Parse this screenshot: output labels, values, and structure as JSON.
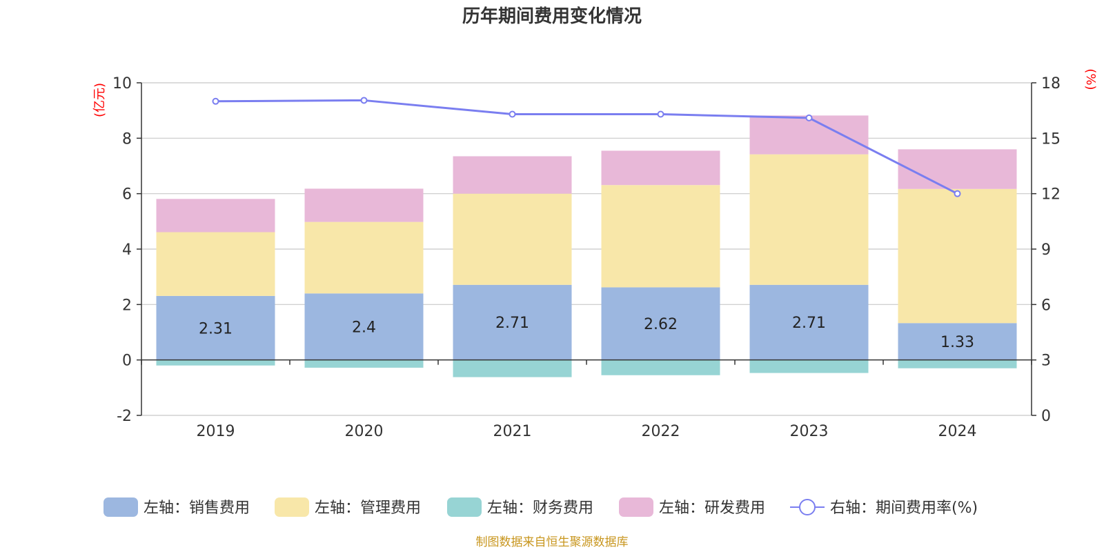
{
  "chart_data": {
    "type": "bar",
    "title": "历年期间费用变化情况",
    "categories": [
      "2019",
      "2020",
      "2021",
      "2022",
      "2023",
      "2024"
    ],
    "left_axis": {
      "unit": "(亿元)",
      "ylim": [
        -2,
        10
      ],
      "ticks": [
        -2,
        0,
        2,
        4,
        6,
        8,
        10
      ]
    },
    "right_axis": {
      "unit": "(%)",
      "ylim": [
        0,
        18
      ],
      "ticks": [
        0,
        3,
        6,
        9,
        12,
        15,
        18
      ]
    },
    "series": [
      {
        "name": "左轴：销售费用",
        "axis": "left",
        "type": "stacked-bar",
        "color": "#9cb7e0",
        "values": [
          2.31,
          2.4,
          2.71,
          2.62,
          2.71,
          1.33
        ],
        "labels": [
          "2.31",
          "2.4",
          "2.71",
          "2.62",
          "2.71",
          "1.33"
        ]
      },
      {
        "name": "左轴：管理费用",
        "axis": "left",
        "type": "stacked-bar",
        "color": "#f8e7a9",
        "values": [
          2.3,
          2.58,
          3.29,
          3.69,
          4.71,
          4.84
        ]
      },
      {
        "name": "左轴：财务费用",
        "axis": "left",
        "type": "stacked-bar",
        "color": "#97d4d4",
        "values": [
          -0.2,
          -0.28,
          -0.62,
          -0.55,
          -0.47,
          -0.3
        ]
      },
      {
        "name": "左轴：研发费用",
        "axis": "left",
        "type": "stacked-bar",
        "color": "#e8b8d8",
        "values": [
          1.2,
          1.2,
          1.35,
          1.24,
          1.4,
          1.43
        ]
      },
      {
        "name": "右轴：期间费用率(%)",
        "axis": "right",
        "type": "line",
        "color": "#7a7ef0",
        "values": [
          17.0,
          17.05,
          16.3,
          16.3,
          16.1,
          12.0
        ]
      }
    ]
  },
  "source": "制图数据来自恒生聚源数据库"
}
